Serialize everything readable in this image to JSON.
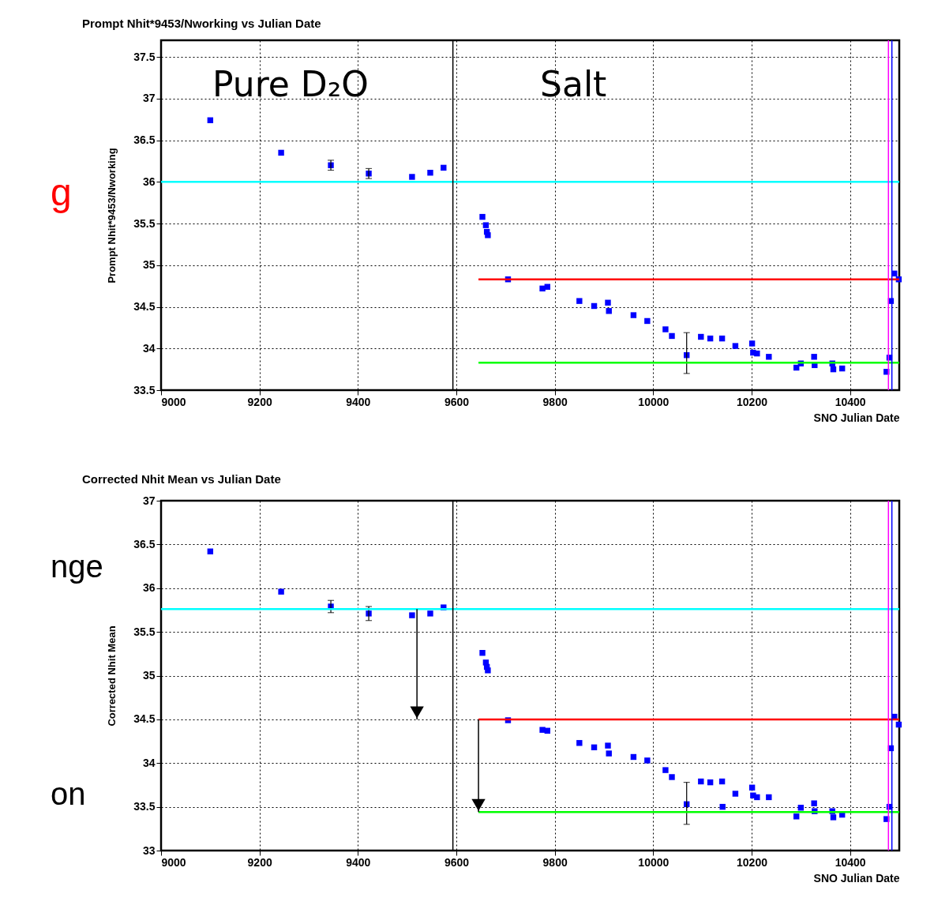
{
  "chart_data": [
    {
      "type": "scatter",
      "title": "Prompt Nhit*9453/Nworking vs Julian Date",
      "xlabel": "SNO Julian Date",
      "ylabel": "Prompt Nhit*9453/Nworking",
      "xlim": [
        9000,
        10500
      ],
      "xticks": [
        9000,
        9200,
        9400,
        9600,
        9800,
        10000,
        10200,
        10400
      ],
      "ylim": [
        33.5,
        37.7
      ],
      "yticks": [
        33.5,
        34,
        34.5,
        35,
        35.5,
        36,
        36.5,
        37,
        37.5
      ],
      "grid": true,
      "marker": "square",
      "series": [
        {
          "color": "#0000ff",
          "x": [
            9100,
            9244,
            9345,
            9422,
            9510,
            9547,
            9574,
            9653,
            9660,
            9662,
            9664,
            9705,
            9775,
            9785,
            9850,
            9880,
            9908,
            9910,
            9960,
            9988,
            10025,
            10038,
            10068,
            10097,
            10116,
            10140,
            10167,
            10201,
            10203,
            10211,
            10235,
            10291,
            10300,
            10327,
            10328,
            10364,
            10366,
            10384,
            10474,
            10480,
            10483,
            10490,
            10499
          ],
          "values": [
            36.74,
            36.35,
            36.2,
            36.1,
            36.06,
            36.11,
            36.17,
            35.58,
            35.48,
            35.4,
            35.36,
            34.83,
            34.72,
            34.74,
            34.57,
            34.51,
            34.55,
            34.45,
            34.4,
            34.33,
            34.23,
            34.15,
            33.92,
            34.14,
            34.12,
            34.12,
            34.03,
            34.06,
            33.95,
            33.94,
            33.9,
            33.77,
            33.82,
            33.9,
            33.8,
            33.82,
            33.75,
            33.76,
            33.72,
            33.89,
            34.57,
            34.9,
            34.83
          ],
          "errors": [
            null,
            null,
            0.06,
            0.06,
            null,
            null,
            null,
            null,
            null,
            null,
            null,
            null,
            null,
            null,
            null,
            null,
            null,
            null,
            null,
            null,
            null,
            null,
            [
              33.7,
              34.19
            ],
            null,
            null,
            null,
            null,
            null,
            null,
            null,
            null,
            null,
            null,
            null,
            null,
            null,
            null,
            null,
            null,
            null,
            null,
            null,
            null
          ]
        },
        {
          "type": "line",
          "marker": "none",
          "color": "#ff0000",
          "x": [
            9645,
            10500
          ],
          "values": [
            34.83,
            34.83
          ]
        },
        {
          "type": "line",
          "marker": "none",
          "color": "#00ff00",
          "x": [
            9645,
            10500
          ],
          "values": [
            33.83,
            33.83
          ]
        }
      ],
      "ref_lines": [
        {
          "axis": "y",
          "value": 36,
          "color": "#00ffff"
        },
        {
          "axis": "x",
          "value": 9593,
          "color": "#000000"
        },
        {
          "axis": "x",
          "value": 10478,
          "color": "#ff00ff"
        },
        {
          "axis": "x",
          "value": 10485,
          "color": "#0000ff"
        }
      ],
      "annotations": [
        "Pure D₂O",
        "Salt",
        "g"
      ]
    },
    {
      "type": "scatter",
      "title": "Corrected Nhit Mean vs Julian Date",
      "xlabel": "SNO Julian Date",
      "ylabel": "Corrected Nhit Mean",
      "xlim": [
        9000,
        10500
      ],
      "xticks": [
        9000,
        9200,
        9400,
        9600,
        9800,
        10000,
        10200,
        10400
      ],
      "ylim": [
        33,
        37
      ],
      "yticks": [
        33,
        33.5,
        34,
        34.5,
        35,
        35.5,
        36,
        36.5,
        37
      ],
      "grid": true,
      "marker": "square",
      "series": [
        {
          "color": "#0000ff",
          "x": [
            9100,
            9244,
            9345,
            9422,
            9510,
            9547,
            9574,
            9653,
            9660,
            9662,
            9664,
            9705,
            9775,
            9785,
            9850,
            9880,
            9908,
            9910,
            9960,
            9988,
            10025,
            10038,
            10068,
            10097,
            10116,
            10140,
            10141,
            10167,
            10201,
            10203,
            10211,
            10235,
            10291,
            10300,
            10327,
            10328,
            10364,
            10366,
            10384,
            10474,
            10480,
            10483,
            10490,
            10499
          ],
          "values": [
            36.42,
            35.96,
            35.79,
            35.71,
            35.69,
            35.71,
            35.78,
            35.26,
            35.15,
            35.1,
            35.06,
            34.49,
            34.38,
            34.37,
            34.23,
            34.18,
            34.2,
            34.11,
            34.07,
            34.03,
            33.92,
            33.84,
            33.53,
            33.79,
            33.78,
            33.79,
            33.5,
            33.65,
            33.72,
            33.63,
            33.61,
            33.61,
            33.39,
            33.49,
            33.54,
            33.45,
            33.45,
            33.38,
            33.41,
            33.36,
            33.5,
            34.17,
            34.53,
            34.44
          ],
          "errors": [
            null,
            null,
            0.07,
            0.08,
            null,
            null,
            null,
            null,
            null,
            null,
            null,
            null,
            null,
            null,
            null,
            null,
            null,
            null,
            null,
            null,
            null,
            null,
            [
              33.3,
              33.78
            ],
            null,
            null,
            null,
            null,
            null,
            null,
            null,
            null,
            null,
            null,
            null,
            null,
            null,
            null,
            null,
            null,
            null,
            null,
            null,
            null,
            null
          ]
        },
        {
          "type": "line",
          "marker": "none",
          "color": "#ff0000",
          "x": [
            9645,
            10500
          ],
          "values": [
            34.5,
            34.5
          ]
        },
        {
          "type": "line",
          "marker": "none",
          "color": "#00ff00",
          "x": [
            9645,
            10500
          ],
          "values": [
            33.44,
            33.44
          ]
        }
      ],
      "ref_lines": [
        {
          "axis": "y",
          "value": 35.76,
          "color": "#00ffff"
        },
        {
          "axis": "x",
          "value": 9593,
          "color": "#000000"
        },
        {
          "axis": "x",
          "value": 10478,
          "color": "#ff00ff"
        },
        {
          "axis": "x",
          "value": 10485,
          "color": "#0000ff"
        }
      ],
      "annotations": [
        "nge",
        "on"
      ]
    }
  ]
}
